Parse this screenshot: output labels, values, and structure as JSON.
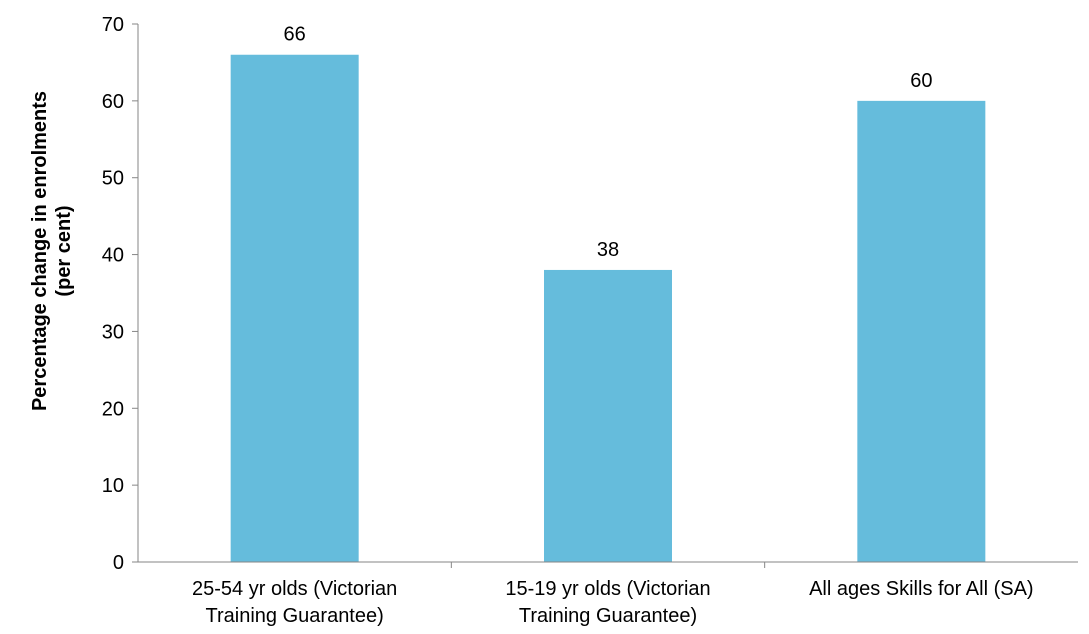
{
  "colors": {
    "bar": "#65bcdc",
    "axis": "#868686"
  },
  "chart_data": {
    "type": "bar",
    "categories": [
      [
        "25-54 yr olds (Victorian",
        "Training Guarantee)"
      ],
      [
        "15-19 yr olds (Victorian",
        "Training Guarantee)"
      ],
      [
        "All ages Skills for All (SA)"
      ]
    ],
    "values": [
      66,
      38,
      60
    ],
    "data_labels": [
      "66",
      "38",
      "60"
    ],
    "ylabel": [
      "Percentage change in enrolments",
      "(per cent)"
    ],
    "xlabel": "",
    "ylim": [
      0,
      70
    ],
    "yticks": [
      0,
      10,
      20,
      30,
      40,
      50,
      60,
      70
    ],
    "grid": false,
    "legend": "none"
  }
}
